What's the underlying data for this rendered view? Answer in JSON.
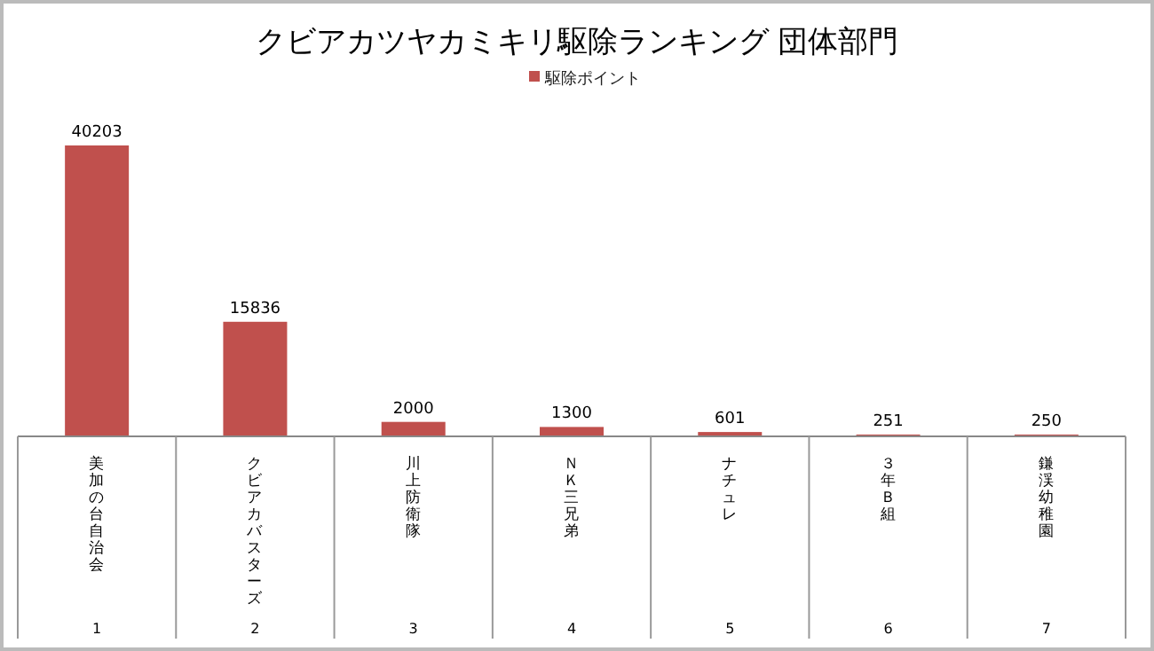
{
  "chart_data": {
    "type": "bar",
    "title": "クビアカツヤカミキリ駆除ランキング 団体部門",
    "categories": [
      "美加の台自治会",
      "クビアカバスターズ",
      "川上防衛隊",
      "ＮＫ三兄弟",
      "ナチュレ",
      "３年Ｂ組",
      "鎌渓幼稚園"
    ],
    "series": [
      {
        "name": "駆除ポイント",
        "color": "#c0504d",
        "values": [
          40203,
          15836,
          2000,
          1300,
          601,
          251,
          250
        ]
      }
    ],
    "data_labels": true,
    "legend": "top",
    "annotations": [
      "1",
      "2",
      "3",
      "4",
      "5",
      "6",
      "7"
    ]
  }
}
